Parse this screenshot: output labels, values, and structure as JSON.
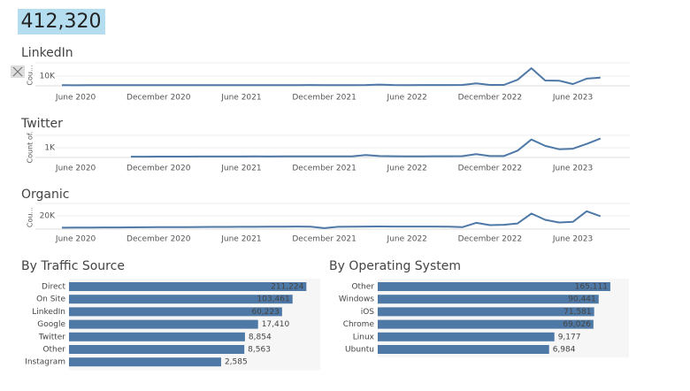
{
  "kpi": "412,320",
  "chart_data": [
    {
      "type": "line",
      "title": "LinkedIn",
      "y_label": "Cou...",
      "color": "#4e79a7",
      "x": [
        "2020-05",
        "2020-06",
        "2020-07",
        "2020-08",
        "2020-09",
        "2020-10",
        "2020-11",
        "2020-12",
        "2021-01",
        "2021-02",
        "2021-03",
        "2021-04",
        "2021-05",
        "2021-06",
        "2021-07",
        "2021-08",
        "2021-09",
        "2021-10",
        "2021-11",
        "2021-12",
        "2022-01",
        "2022-02",
        "2022-03",
        "2022-04",
        "2022-05",
        "2022-06",
        "2022-07",
        "2022-08",
        "2022-09",
        "2022-10",
        "2022-11",
        "2022-12",
        "2023-01",
        "2023-02",
        "2023-03",
        "2023-04",
        "2023-05",
        "2023-06",
        "2023-07",
        "2023-08"
      ],
      "values": [
        600,
        550,
        600,
        650,
        600,
        600,
        650,
        700,
        650,
        700,
        750,
        700,
        700,
        650,
        700,
        750,
        700,
        750,
        800,
        750,
        700,
        750,
        800,
        1300,
        800,
        750,
        800,
        850,
        800,
        900,
        2600,
        900,
        900,
        6200,
        18200,
        5500,
        5300,
        1800,
        7400,
        8500
      ],
      "xlim": [
        "2020-05",
        "2023-10"
      ],
      "xticks": [
        {
          "value": "2020-06",
          "label": "June 2020"
        },
        {
          "value": "2020-12",
          "label": "December 2020"
        },
        {
          "value": "2021-06",
          "label": "June 2021"
        },
        {
          "value": "2021-12",
          "label": "December 2021"
        },
        {
          "value": "2022-06",
          "label": "June 2022"
        },
        {
          "value": "2022-12",
          "label": "December 2022"
        },
        {
          "value": "2023-06",
          "label": "June 2023"
        }
      ],
      "ylim": [
        0,
        22000
      ],
      "yticks": [
        {
          "value": 10000,
          "label": "10K"
        }
      ],
      "grid": true
    },
    {
      "type": "line",
      "title": "Twitter",
      "y_label": "Count of.",
      "color": "#4e79a7",
      "x": [
        "2020-05",
        "2020-06",
        "2020-07",
        "2020-08",
        "2020-09",
        "2020-10",
        "2020-11",
        "2020-12",
        "2021-01",
        "2021-02",
        "2021-03",
        "2021-04",
        "2021-05",
        "2021-06",
        "2021-07",
        "2021-08",
        "2021-09",
        "2021-10",
        "2021-11",
        "2021-12",
        "2022-01",
        "2022-02",
        "2022-03",
        "2022-04",
        "2022-05",
        "2022-06",
        "2022-07",
        "2022-08",
        "2022-09",
        "2022-10",
        "2022-11",
        "2022-12",
        "2023-01",
        "2023-02",
        "2023-03",
        "2023-04",
        "2023-05",
        "2023-06",
        "2023-07",
        "2023-08"
      ],
      "values": [
        null,
        null,
        null,
        null,
        null,
        80,
        80,
        90,
        90,
        90,
        100,
        100,
        100,
        100,
        110,
        100,
        110,
        110,
        110,
        110,
        110,
        120,
        250,
        150,
        130,
        120,
        120,
        130,
        130,
        140,
        350,
        150,
        150,
        700,
        1850,
        1200,
        850,
        900,
        1400,
        1950
      ],
      "xlim": [
        "2020-05",
        "2023-10"
      ],
      "xticks": [
        {
          "value": "2020-06",
          "label": "June 2020"
        },
        {
          "value": "2020-12",
          "label": "December 2020"
        },
        {
          "value": "2021-06",
          "label": "June 2021"
        },
        {
          "value": "2021-12",
          "label": "December 2021"
        },
        {
          "value": "2022-06",
          "label": "June 2022"
        },
        {
          "value": "2022-12",
          "label": "December 2022"
        },
        {
          "value": "2023-06",
          "label": "June 2023"
        }
      ],
      "ylim": [
        0,
        2100
      ],
      "yticks": [
        {
          "value": 1000,
          "label": "1K"
        }
      ],
      "grid": true
    },
    {
      "type": "line",
      "title": "Organic",
      "y_label": "Cou...",
      "color": "#4e79a7",
      "x": [
        "2020-05",
        "2020-06",
        "2020-07",
        "2020-08",
        "2020-09",
        "2020-10",
        "2020-11",
        "2020-12",
        "2021-01",
        "2021-02",
        "2021-03",
        "2021-04",
        "2021-05",
        "2021-06",
        "2021-07",
        "2021-08",
        "2021-09",
        "2021-10",
        "2021-11",
        "2021-12",
        "2022-01",
        "2022-02",
        "2022-03",
        "2022-04",
        "2022-05",
        "2022-06",
        "2022-07",
        "2022-08",
        "2022-09",
        "2022-10",
        "2022-11",
        "2022-12",
        "2023-01",
        "2023-02",
        "2023-03",
        "2023-04",
        "2023-05",
        "2023-06",
        "2023-07",
        "2023-08"
      ],
      "values": [
        2200,
        2300,
        2400,
        2500,
        2600,
        2700,
        2800,
        2900,
        3000,
        3100,
        3200,
        3300,
        3300,
        3400,
        3500,
        3600,
        3700,
        3800,
        3600,
        1500,
        3400,
        3600,
        3800,
        4000,
        3900,
        3800,
        3900,
        3800,
        3700,
        3000,
        9500,
        6000,
        6500,
        8500,
        23500,
        14000,
        10000,
        11000,
        27000,
        19500
      ],
      "xlim": [
        "2020-05",
        "2023-10"
      ],
      "xticks": [
        {
          "value": "2020-06",
          "label": "June 2020"
        },
        {
          "value": "2020-12",
          "label": "December 2020"
        },
        {
          "value": "2021-06",
          "label": "June 2021"
        },
        {
          "value": "2021-12",
          "label": "December 2021"
        },
        {
          "value": "2022-06",
          "label": "June 2022"
        },
        {
          "value": "2022-12",
          "label": "December 2022"
        },
        {
          "value": "2023-06",
          "label": "June 2023"
        }
      ],
      "ylim": [
        0,
        36000
      ],
      "yticks": [
        {
          "value": 20000,
          "label": "20K"
        }
      ],
      "grid": true
    },
    {
      "type": "bar",
      "orientation": "horizontal",
      "title": "By Traffic Source",
      "color": "#4e79a7",
      "categories": [
        "Direct",
        "On Site",
        "LinkedIn",
        "Google",
        "Twitter",
        "Other",
        "Instagram"
      ],
      "values": [
        211224,
        103461,
        60223,
        17410,
        8854,
        8563,
        2585
      ],
      "value_labels": [
        "211,224",
        "103,461",
        "60,223",
        "17,410",
        "8,854",
        "8,563",
        "2,585"
      ],
      "xscale": "log",
      "xlim": [
        1,
        360000
      ]
    },
    {
      "type": "bar",
      "orientation": "horizontal",
      "title": "By Operating System",
      "color": "#4e79a7",
      "categories": [
        "Other",
        "Windows",
        "iOS",
        "Chrome",
        "Linux",
        "Ubuntu"
      ],
      "values": [
        165111,
        90441,
        71581,
        69026,
        9177,
        6984
      ],
      "value_labels": [
        "165,111",
        "90,441",
        "71,581",
        "69,026",
        "9,177",
        "6,984"
      ],
      "xscale": "log",
      "xlim": [
        1,
        360000
      ]
    }
  ]
}
